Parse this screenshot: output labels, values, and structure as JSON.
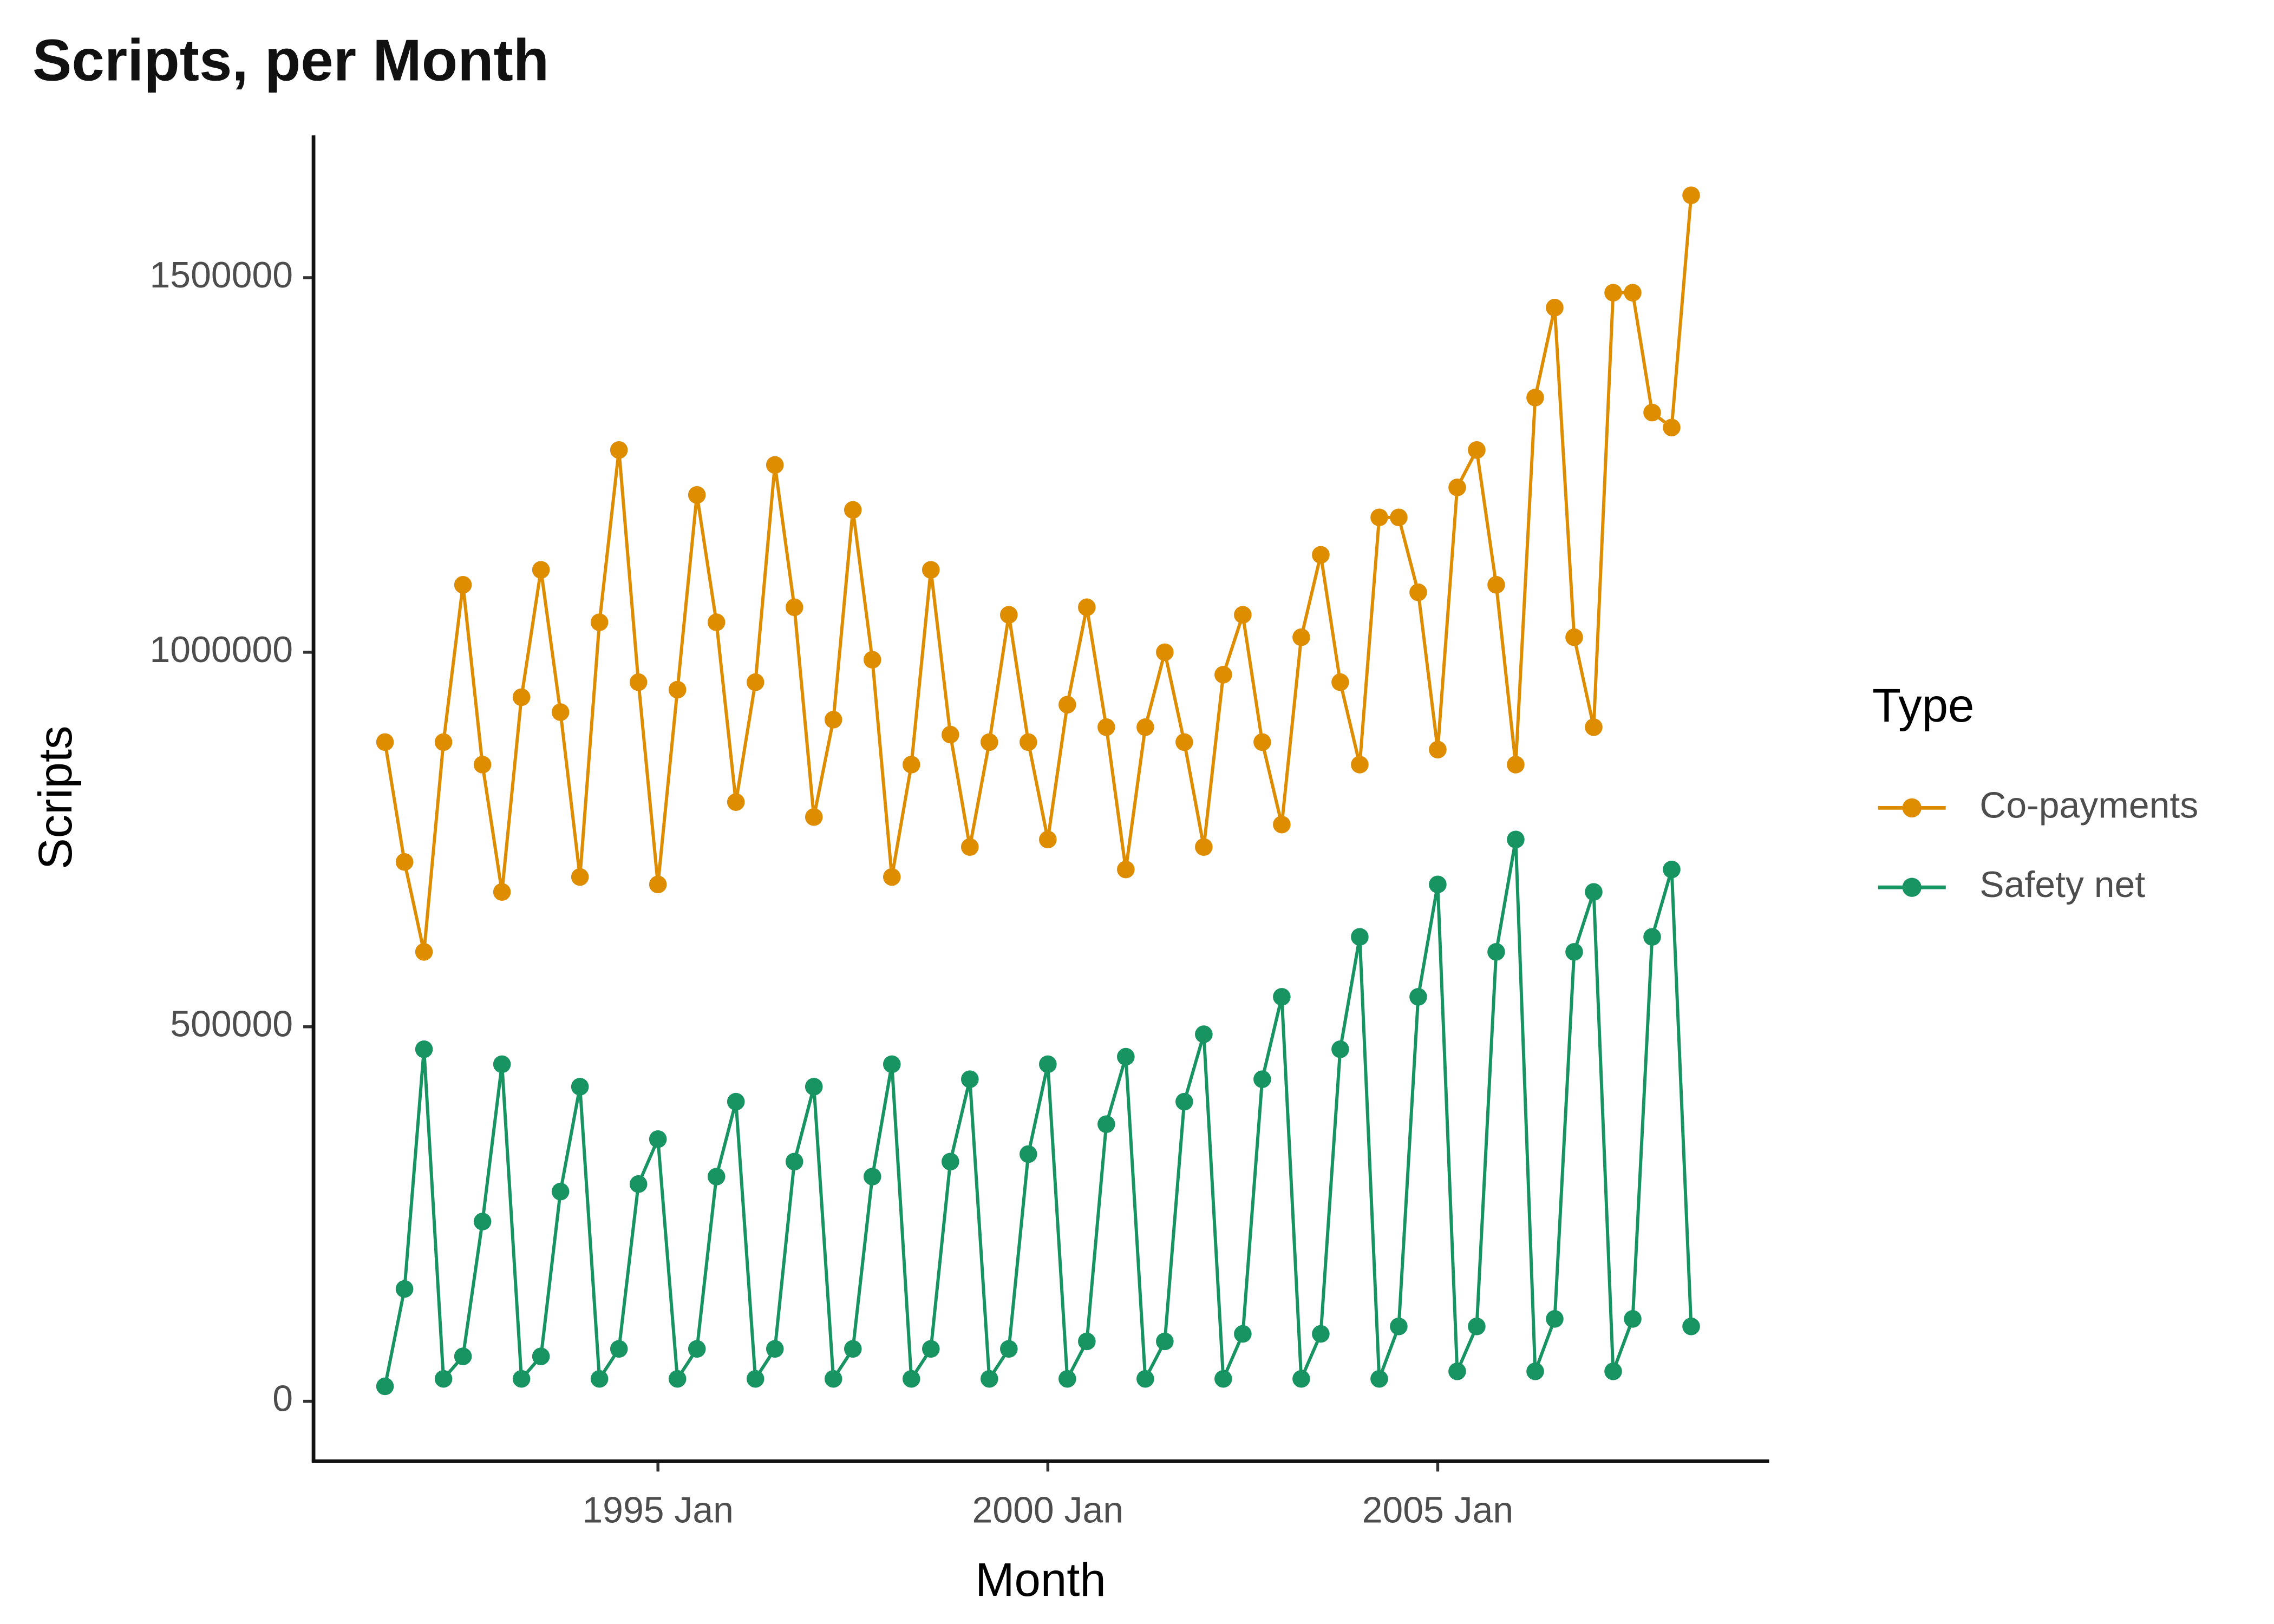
{
  "chart_data": {
    "type": "line",
    "title": "Scripts, per Month",
    "x_label": "Month",
    "y_label": "Scripts",
    "legend_title": "Type",
    "legend_position": "right",
    "x": [
      "1991 Jul",
      "1991 Oct",
      "1992 Jan",
      "1992 Apr",
      "1992 Jul",
      "1992 Oct",
      "1993 Jan",
      "1993 Apr",
      "1993 Jul",
      "1993 Oct",
      "1994 Jan",
      "1994 Apr",
      "1994 Jul",
      "1994 Oct",
      "1995 Jan",
      "1995 Apr",
      "1995 Jul",
      "1995 Oct",
      "1996 Jan",
      "1996 Apr",
      "1996 Jul",
      "1996 Oct",
      "1997 Jan",
      "1997 Apr",
      "1997 Jul",
      "1997 Oct",
      "1998 Jan",
      "1998 Apr",
      "1998 Jul",
      "1998 Oct",
      "1999 Jan",
      "1999 Apr",
      "1999 Jul",
      "1999 Oct",
      "2000 Jan",
      "2000 Apr",
      "2000 Jul",
      "2000 Oct",
      "2001 Jan",
      "2001 Apr",
      "2001 Jul",
      "2001 Oct",
      "2002 Jan",
      "2002 Apr",
      "2002 Jul",
      "2002 Oct",
      "2003 Jan",
      "2003 Apr",
      "2003 Jul",
      "2003 Oct",
      "2004 Jan",
      "2004 Apr",
      "2004 Jul",
      "2004 Oct",
      "2005 Jan",
      "2005 Apr",
      "2005 Jul",
      "2005 Oct",
      "2006 Jan",
      "2006 Apr",
      "2006 Jul",
      "2006 Oct",
      "2007 Jan",
      "2007 Apr",
      "2007 Jul",
      "2007 Oct",
      "2008 Jan",
      "2008 Apr"
    ],
    "series": [
      {
        "name": "Co-payments",
        "color": "#de8c00",
        "values": [
          880000,
          720000,
          600000,
          880000,
          1090000,
          850000,
          680000,
          940000,
          1110000,
          920000,
          700000,
          1040000,
          1270000,
          960000,
          690000,
          950000,
          1210000,
          1040000,
          800000,
          960000,
          1250000,
          1060000,
          780000,
          910000,
          1190000,
          990000,
          700000,
          850000,
          1110000,
          890000,
          740000,
          880000,
          1050000,
          880000,
          750000,
          930000,
          1060000,
          900000,
          710000,
          900000,
          1000000,
          880000,
          740000,
          970000,
          1050000,
          880000,
          770000,
          1020000,
          1130000,
          960000,
          850000,
          1180000,
          1180000,
          1080000,
          870000,
          1220000,
          1270000,
          1090000,
          850000,
          1340000,
          1460000,
          1020000,
          900000,
          1480000,
          1480000,
          1320000,
          1300000,
          1610000
        ]
      },
      {
        "name": "Safety net",
        "color": "#189463",
        "values": [
          20000,
          150000,
          470000,
          30000,
          60000,
          240000,
          450000,
          30000,
          60000,
          280000,
          420000,
          30000,
          70000,
          290000,
          350000,
          30000,
          70000,
          300000,
          400000,
          30000,
          70000,
          320000,
          420000,
          30000,
          70000,
          300000,
          450000,
          30000,
          70000,
          320000,
          430000,
          30000,
          70000,
          330000,
          450000,
          30000,
          80000,
          370000,
          460000,
          30000,
          80000,
          400000,
          490000,
          30000,
          90000,
          430000,
          540000,
          30000,
          90000,
          470000,
          620000,
          30000,
          100000,
          540000,
          690000,
          40000,
          100000,
          600000,
          750000,
          40000,
          110000,
          600000,
          680000,
          40000,
          110000,
          620000,
          710000,
          100000
        ]
      }
    ],
    "xlim": [
      "1990 Aug",
      "2009 Apr"
    ],
    "xticks": [
      "1995 Jan",
      "2000 Jan",
      "2005 Jan"
    ],
    "ylim": [
      -80000,
      1690000
    ],
    "yticks": [
      0,
      500000,
      1000000,
      1500000
    ],
    "grid": false
  }
}
